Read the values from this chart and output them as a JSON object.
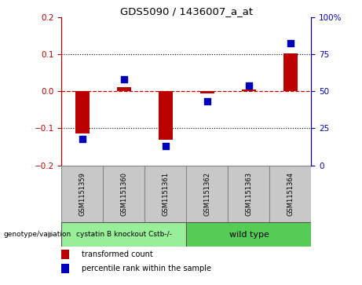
{
  "title": "GDS5090 / 1436007_a_at",
  "samples": [
    "GSM1151359",
    "GSM1151360",
    "GSM1151361",
    "GSM1151362",
    "GSM1151363",
    "GSM1151364"
  ],
  "bar_values": [
    -0.115,
    0.01,
    -0.132,
    -0.005,
    0.005,
    0.102
  ],
  "dot_values_scaled": [
    -0.128,
    0.033,
    -0.148,
    -0.028,
    0.015,
    0.13
  ],
  "ylim_left": [
    -0.2,
    0.2
  ],
  "ylim_right": [
    0,
    100
  ],
  "yticks_left": [
    -0.2,
    -0.1,
    0.0,
    0.1,
    0.2
  ],
  "yticks_right": [
    0,
    25,
    50,
    75,
    100
  ],
  "ytick_labels_right": [
    "0",
    "25",
    "50",
    "75",
    "100%"
  ],
  "bar_color": "#bb0000",
  "dot_color": "#0000bb",
  "zero_line_color": "#cc0000",
  "grid_line_color": "#000000",
  "group1_label": "cystatin B knockout Cstb-/-",
  "group2_label": "wild type",
  "group1_color": "#99ee99",
  "group2_color": "#55cc55",
  "genotype_label": "genotype/variation",
  "legend_bar_label": "transformed count",
  "legend_dot_label": "percentile rank within the sample",
  "n_group1": 3,
  "n_group2": 3,
  "bg_color": "#ffffff",
  "plot_bg_color": "#ffffff",
  "tick_area_bg": "#c8c8c8"
}
